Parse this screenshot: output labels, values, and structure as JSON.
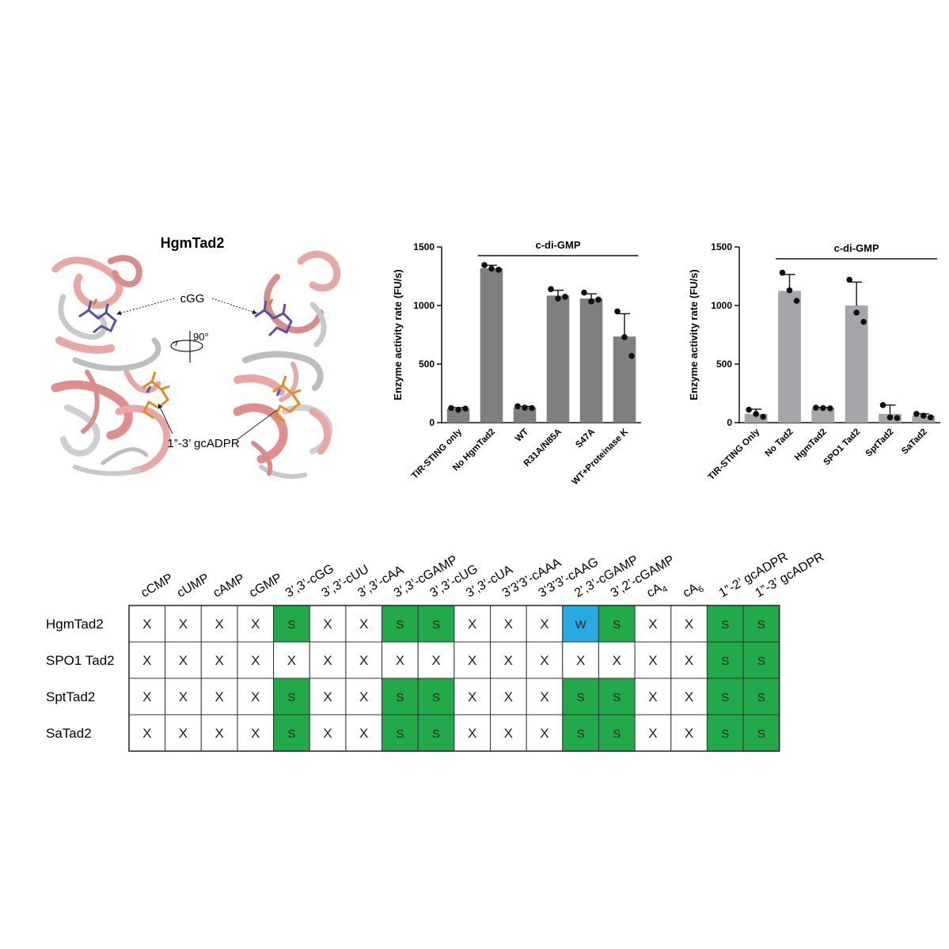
{
  "structure_panel": {
    "title": "HgmTad2",
    "ligand_top": "cGG",
    "ligand_bottom": "1”-3’ gcADPR",
    "rotation": "90°"
  },
  "chart_data": [
    {
      "type": "bar",
      "ylabel": "Enzyme activity rate (FU/s)",
      "xlabel": "",
      "ylim": [
        0,
        1500
      ],
      "yticks": [
        0,
        500,
        1000,
        1500
      ],
      "bracket_label": "c-di-GMP",
      "bracket_from": 1,
      "bracket_to": 5,
      "bar_color": "#7f7f7f",
      "categories": [
        "TIR-STING only",
        "No HgmTad2",
        "WT",
        "R31A/N85A",
        "S47A",
        "WT+Proteinase K"
      ],
      "values": [
        118,
        1318,
        130,
        1085,
        1060,
        735
      ],
      "errors": [
        10,
        25,
        8,
        45,
        40,
        195
      ],
      "points": [
        [
          125,
          110,
          120
        ],
        [
          1345,
          1315,
          1305
        ],
        [
          140,
          128,
          125
        ],
        [
          1140,
          1060,
          1075
        ],
        [
          1110,
          1035,
          1050
        ],
        [
          950,
          730,
          570
        ]
      ]
    },
    {
      "type": "bar",
      "ylabel": "Enzyme activity rate (FU/s)",
      "xlabel": "",
      "ylim": [
        0,
        1500
      ],
      "yticks": [
        0,
        500,
        1000,
        1500
      ],
      "bracket_label": "c-di-GMP",
      "bracket_from": 1,
      "bracket_to": 5,
      "bar_color": "#a6a6aa",
      "categories": [
        "TIR-STING Only",
        "No Tad2",
        "HgmTad2",
        "SPO1 Tad2",
        "SptTad2",
        "SaTad2"
      ],
      "values": [
        75,
        1125,
        125,
        1000,
        75,
        60
      ],
      "errors": [
        40,
        140,
        5,
        200,
        75,
        15
      ],
      "points": [
        [
          110,
          75,
          50
        ],
        [
          1280,
          1130,
          1040
        ],
        [
          128,
          125,
          122
        ],
        [
          1220,
          940,
          860
        ],
        [
          150,
          45,
          40
        ],
        [
          75,
          60,
          45
        ]
      ]
    },
    {
      "type": "table",
      "columns": [
        "cCMP",
        "cUMP",
        "cAMP",
        "cGMP",
        "3’,3’-cGG",
        "3’,3’-cUU",
        "3’,3’-cAA",
        "3’,3’-cGAMP",
        "3’,3’-cUG",
        "3’,3’-cUA",
        "3’3’3’-cAAA",
        "3’3’3’-cAAG",
        "2’,3’-cGAMP",
        "3’,2’-cGAMP",
        "cA4",
        "cA6",
        "1”-2’ gcADPR",
        "1”-3’ gcADPR"
      ],
      "rows": [
        {
          "name": "HgmTad2",
          "cells": [
            "X",
            "X",
            "X",
            "X",
            "S",
            "X",
            "X",
            "S",
            "S",
            "X",
            "X",
            "X",
            "W",
            "S",
            "X",
            "X",
            "S",
            "S"
          ]
        },
        {
          "name": "SPO1 Tad2",
          "cells": [
            "X",
            "X",
            "X",
            "X",
            "X",
            "X",
            "X",
            "X",
            "X",
            "X",
            "X",
            "X",
            "X",
            "X",
            "X",
            "X",
            "S",
            "S"
          ]
        },
        {
          "name": "SptTad2",
          "cells": [
            "X",
            "X",
            "X",
            "X",
            "S",
            "X",
            "X",
            "S",
            "S",
            "X",
            "X",
            "X",
            "S",
            "S",
            "X",
            "X",
            "S",
            "S"
          ]
        },
        {
          "name": "SaTad2",
          "cells": [
            "X",
            "X",
            "X",
            "X",
            "S",
            "X",
            "X",
            "S",
            "S",
            "X",
            "X",
            "X",
            "S",
            "S",
            "X",
            "X",
            "S",
            "S"
          ]
        }
      ],
      "cell_colors": {
        "S": "#22a94a",
        "W": "#27a9e1",
        "X": "#ffffff"
      }
    }
  ]
}
